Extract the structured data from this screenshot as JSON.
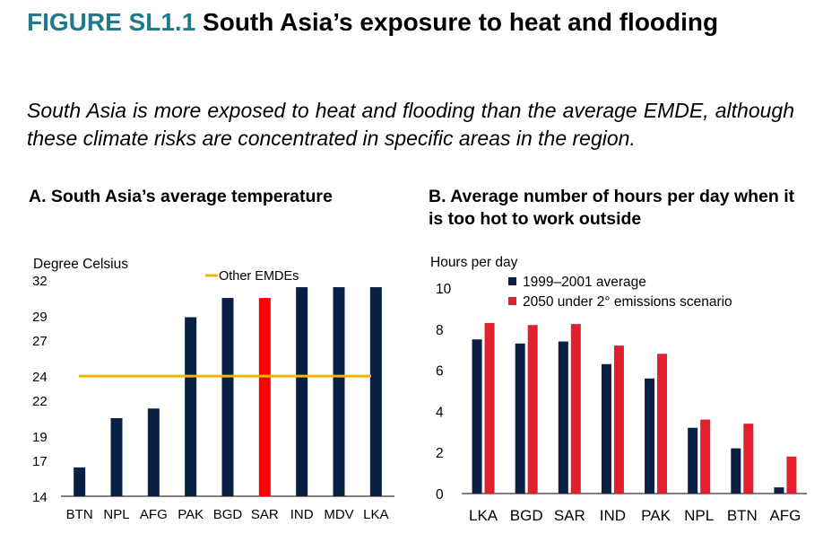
{
  "figure": {
    "number": "FIGURE SL1.1",
    "title": "South Asia’s exposure to heat and flooding",
    "subtitle": "South Asia is more exposed to heat and flooding than the average EMDE, although these climate risks are concentrated in specific areas in the region."
  },
  "colors": {
    "navy": "#0a1f44",
    "red": "#e0202f",
    "highlight_red": "#ff0000",
    "gold": "#f2b600",
    "teal": "#1f7a8c"
  },
  "chart_data": [
    {
      "id": "A",
      "type": "bar",
      "title": "A. South Asia’s average temperature",
      "ylabel": "Degree Celsius",
      "ylim": [
        14,
        32
      ],
      "y_ticks": [
        "14",
        "17",
        "19",
        "22",
        "24",
        "27",
        "29",
        "32"
      ],
      "categories": [
        "BTN",
        "NPL",
        "AFG",
        "PAK",
        "BGD",
        "SAR",
        "IND",
        "MDV",
        "LKA"
      ],
      "values": [
        16.4,
        20.5,
        21.3,
        28.9,
        30.5,
        30.5,
        31.4,
        31.4,
        31.4
      ],
      "highlight": "SAR",
      "reference_line": {
        "name": "Other EMDEs",
        "value": 24
      }
    },
    {
      "id": "B",
      "type": "bar",
      "title": "B. Average number of hours per day when it is too hot to work outside",
      "ylabel": "Hours per day",
      "ylim": [
        0,
        10
      ],
      "y_ticks": [
        "0",
        "2",
        "4",
        "6",
        "8",
        "10"
      ],
      "categories": [
        "LKA",
        "BGD",
        "SAR",
        "IND",
        "PAK",
        "NPL",
        "BTN",
        "AFG"
      ],
      "series": [
        {
          "name": "1999–2001 average",
          "values": [
            7.5,
            7.3,
            7.4,
            6.3,
            5.6,
            3.2,
            2.2,
            0.3
          ]
        },
        {
          "name": "2050 under 2° emissions scenario",
          "values": [
            8.3,
            8.2,
            8.25,
            7.2,
            6.8,
            3.6,
            3.4,
            1.8
          ]
        }
      ]
    }
  ]
}
